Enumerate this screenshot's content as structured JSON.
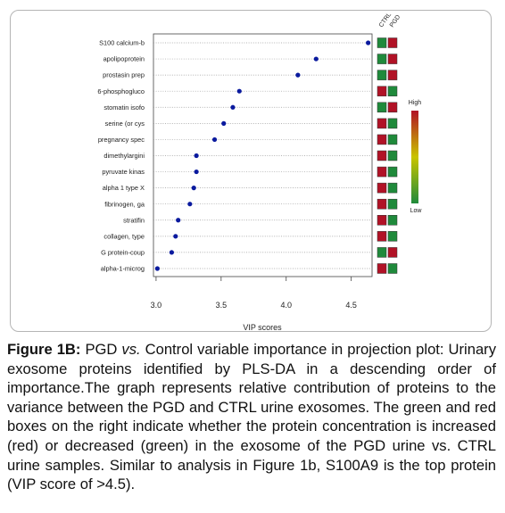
{
  "chart_data": {
    "type": "scatter",
    "xlabel": "VIP scores",
    "xlim": [
      2.98,
      4.66
    ],
    "xticks": [
      "3.0",
      "3.5",
      "4.0",
      "4.5"
    ],
    "xtick_values": [
      3.0,
      3.5,
      4.0,
      4.5
    ],
    "grid": "horizontal dotted",
    "point_color": "#0a1a9e",
    "proteins": [
      {
        "label": "S100 calcium-b",
        "vip": 4.63,
        "ctrl": "low",
        "pgd": "high"
      },
      {
        "label": "apolipoprotein",
        "vip": 4.23,
        "ctrl": "low",
        "pgd": "high"
      },
      {
        "label": "prostasin prep",
        "vip": 4.09,
        "ctrl": "low",
        "pgd": "high"
      },
      {
        "label": "6-phosphogluco",
        "vip": 3.64,
        "ctrl": "high",
        "pgd": "low"
      },
      {
        "label": "stomatin isofo",
        "vip": 3.59,
        "ctrl": "low",
        "pgd": "high"
      },
      {
        "label": "serine (or cys",
        "vip": 3.52,
        "ctrl": "high",
        "pgd": "low"
      },
      {
        "label": "pregnancy spec",
        "vip": 3.45,
        "ctrl": "high",
        "pgd": "low"
      },
      {
        "label": "dimethylargini",
        "vip": 3.31,
        "ctrl": "high",
        "pgd": "low"
      },
      {
        "label": "pyruvate kinas",
        "vip": 3.31,
        "ctrl": "high",
        "pgd": "low"
      },
      {
        "label": "alpha 1 type X",
        "vip": 3.29,
        "ctrl": "high",
        "pgd": "low"
      },
      {
        "label": "fibrinogen, ga",
        "vip": 3.26,
        "ctrl": "high",
        "pgd": "low"
      },
      {
        "label": "stratifin",
        "vip": 3.17,
        "ctrl": "high",
        "pgd": "low"
      },
      {
        "label": "collagen, type",
        "vip": 3.15,
        "ctrl": "high",
        "pgd": "low"
      },
      {
        "label": "G protein-coup",
        "vip": 3.12,
        "ctrl": "low",
        "pgd": "high"
      },
      {
        "label": "alpha-1-microg",
        "vip": 3.01,
        "ctrl": "high",
        "pgd": "low"
      }
    ],
    "group_columns": [
      "CTRL",
      "PGD"
    ],
    "color_key": {
      "high_label": "High",
      "low_label": "Low",
      "high_color": "#b11226",
      "low_color": "#1f8a3b"
    }
  },
  "caption": {
    "label": "Figure 1B:",
    "text_before_vs": " PGD ",
    "vs_italic": "vs.",
    "text_after_vs": " Control variable importance in projection plot: Urinary exosome proteins identified by PLS-DA in a descending order of importance.The graph represents relative contribution of proteins to the variance between the PGD and CTRL urine exosomes. The green and red boxes on the right indicate whether the protein concentration is increased (red) or decreased (green) in the exosome of the PGD urine vs. CTRL urine samples. Similar to analysis in Figure 1b, S100A9 is the top protein (VIP score of >4.5)."
  }
}
